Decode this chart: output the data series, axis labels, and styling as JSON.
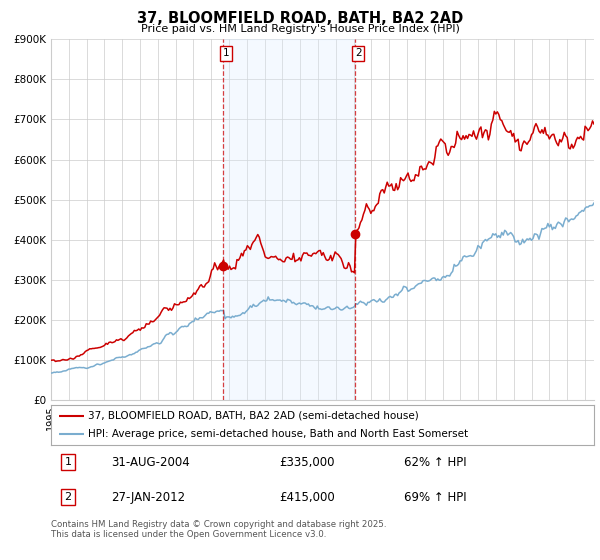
{
  "title": "37, BLOOMFIELD ROAD, BATH, BA2 2AD",
  "subtitle": "Price paid vs. HM Land Registry's House Price Index (HPI)",
  "legend_line1": "37, BLOOMFIELD ROAD, BATH, BA2 2AD (semi-detached house)",
  "legend_line2": "HPI: Average price, semi-detached house, Bath and North East Somerset",
  "annotation1_label": "1",
  "annotation1_date": "31-AUG-2004",
  "annotation1_price": "£335,000",
  "annotation1_hpi": "62% ↑ HPI",
  "annotation2_label": "2",
  "annotation2_date": "27-JAN-2012",
  "annotation2_price": "£415,000",
  "annotation2_hpi": "69% ↑ HPI",
  "footnote": "Contains HM Land Registry data © Crown copyright and database right 2025.\nThis data is licensed under the Open Government Licence v3.0.",
  "red_color": "#cc0000",
  "blue_color": "#7aadcf",
  "shade_color": "#ddeeff",
  "grid_color": "#cccccc",
  "background_color": "#ffffff",
  "ylim": [
    0,
    900000
  ],
  "yticks": [
    0,
    100000,
    200000,
    300000,
    400000,
    500000,
    600000,
    700000,
    800000,
    900000
  ],
  "ytick_labels": [
    "£0",
    "£100K",
    "£200K",
    "£300K",
    "£400K",
    "£500K",
    "£600K",
    "£700K",
    "£800K",
    "£900K"
  ],
  "sale1_x": 2004.667,
  "sale1_y": 335000,
  "sale2_x": 2012.083,
  "sale2_y": 415000,
  "vline1_x": 2004.667,
  "vline2_x": 2012.083,
  "shade_x1": 2004.667,
  "shade_x2": 2012.083,
  "xmin": 1995.0,
  "xmax": 2025.5
}
